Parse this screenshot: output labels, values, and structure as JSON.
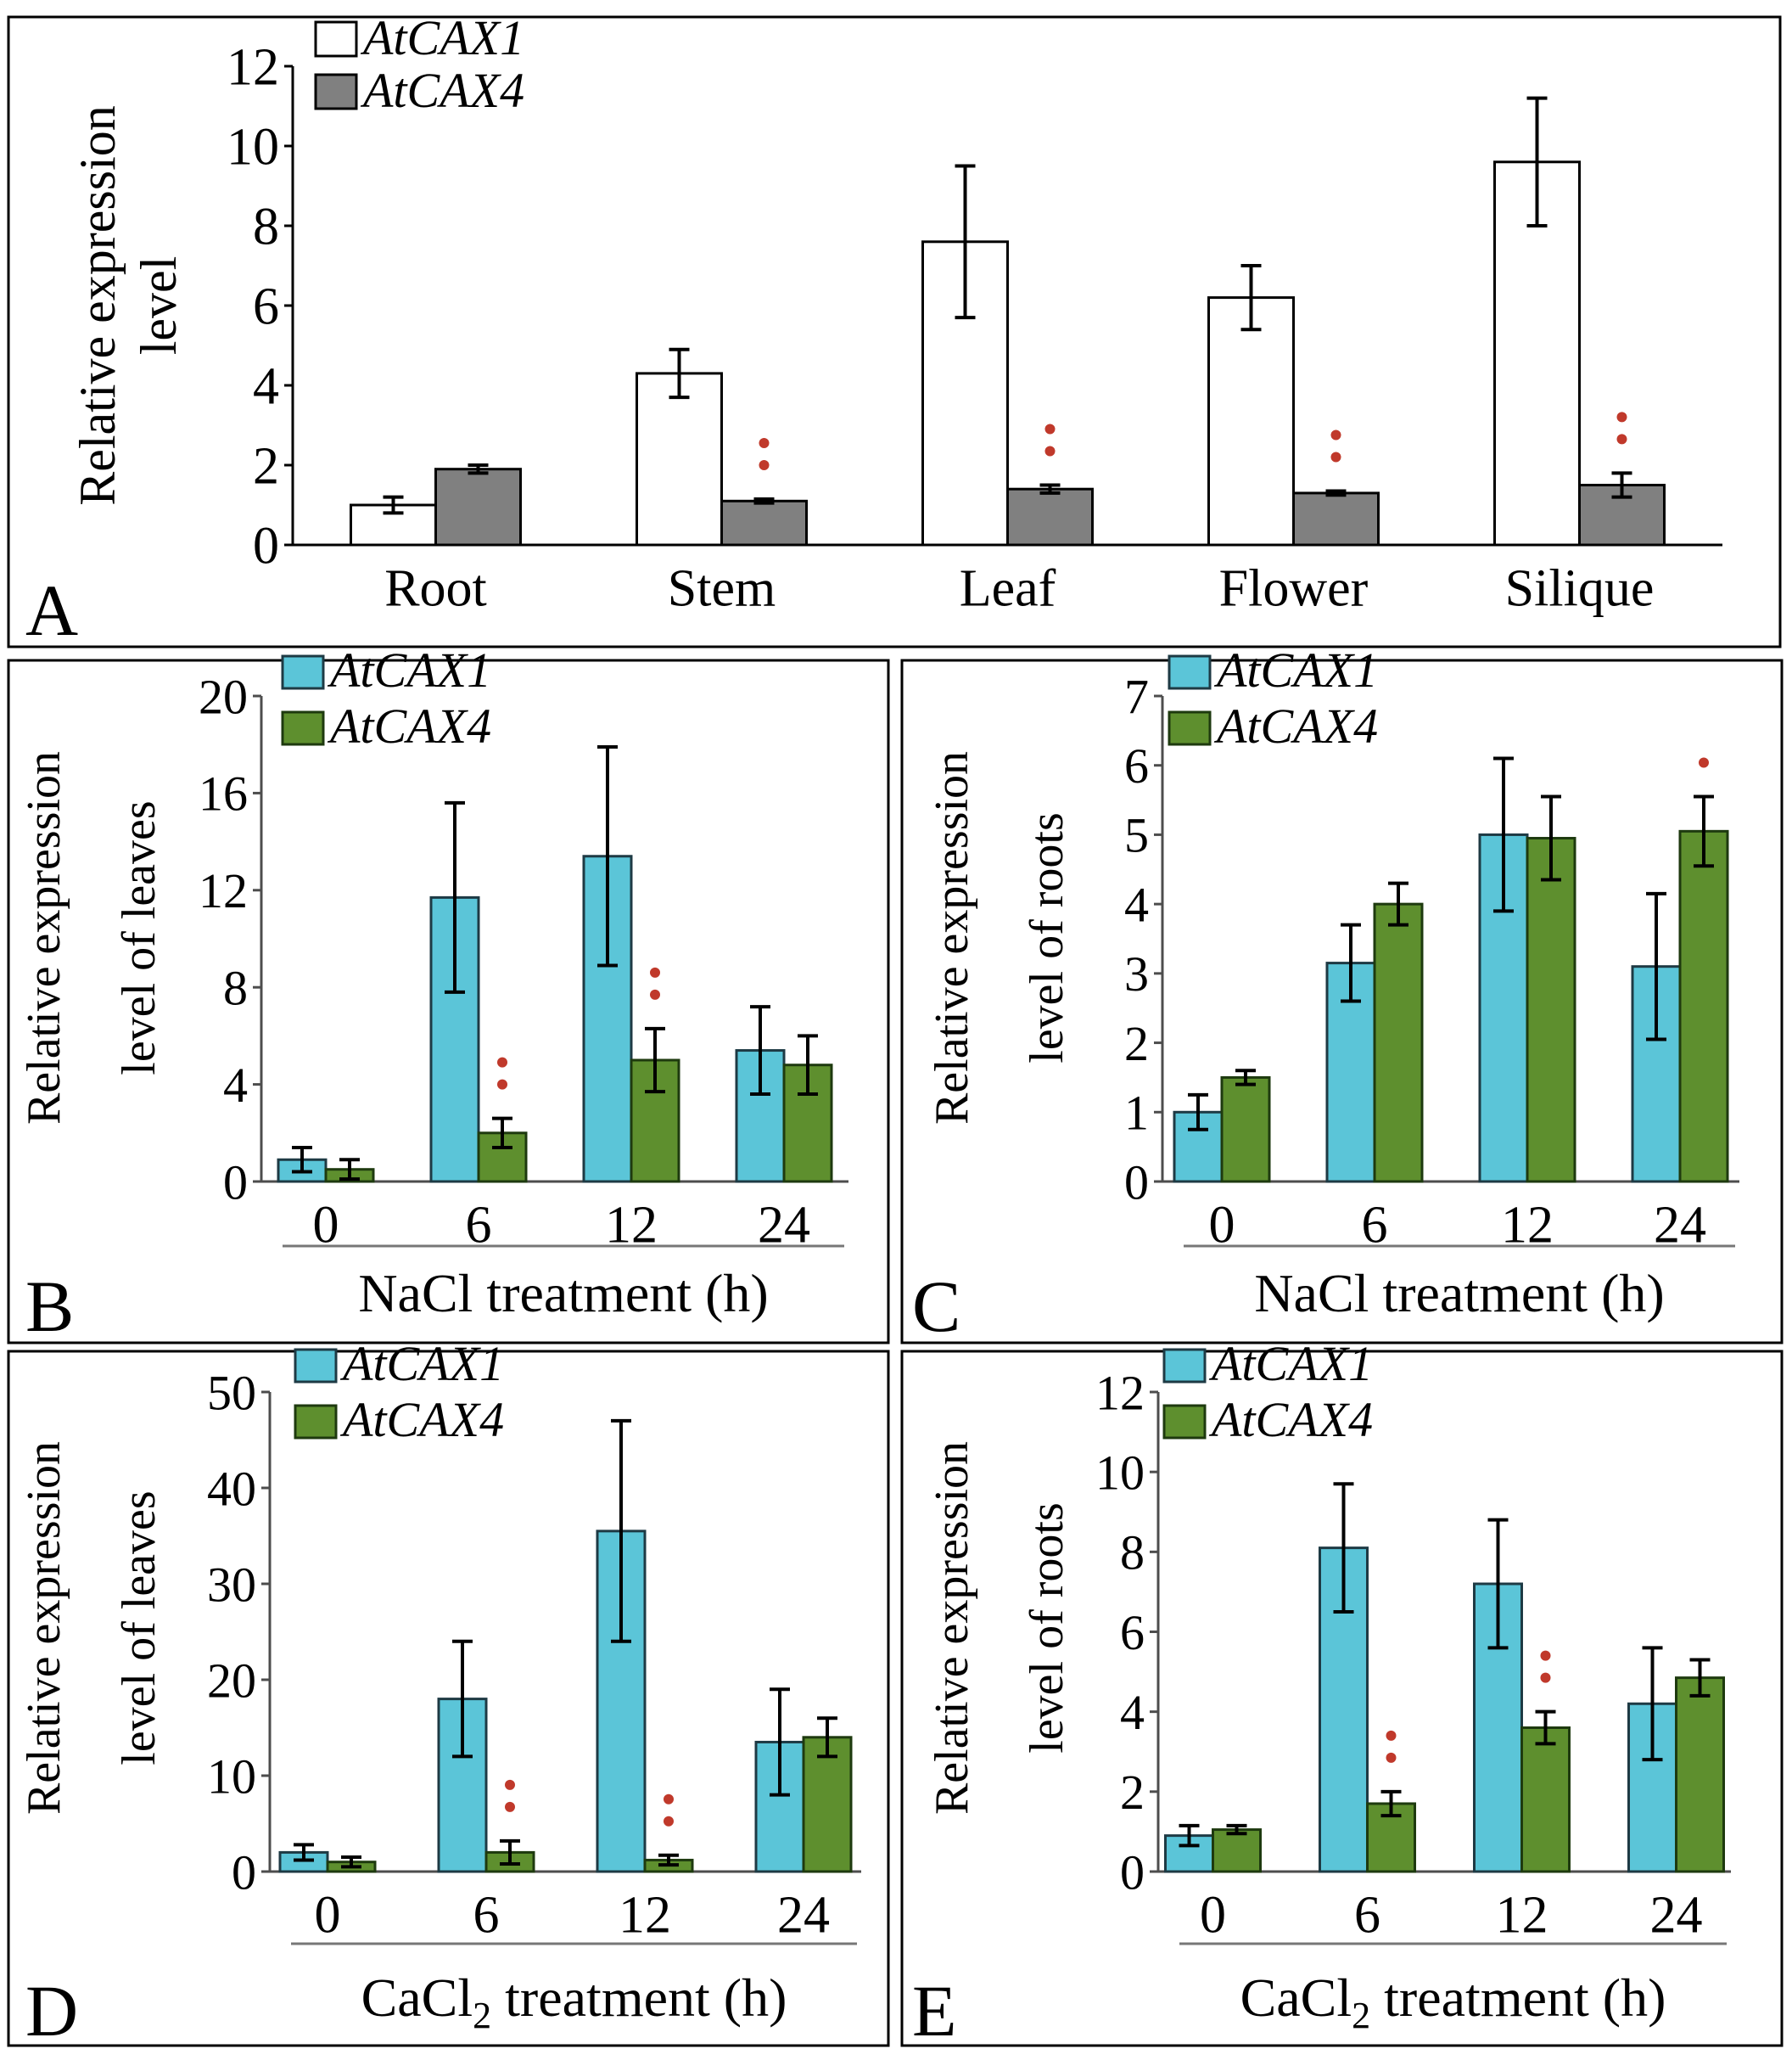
{
  "colors": {
    "cax1_A": "#ffffff",
    "cax4_A": "#808080",
    "cax1": "#5bc5d8",
    "cax4": "#5e8f2e",
    "star": "#c0392b"
  },
  "chart_data": [
    {
      "id": "A",
      "type": "bar",
      "panel_label": "A",
      "ylabel_lines": [
        "Relative expression",
        "level"
      ],
      "xlabel_pre": "",
      "xlabel_sub": "",
      "xlabel_post": "",
      "categories": [
        "Root",
        "Stem",
        "Leaf",
        "Flower",
        "Silique"
      ],
      "ylim": [
        0,
        12
      ],
      "yticks": [
        0,
        2,
        4,
        6,
        8,
        10,
        12
      ],
      "legend": [
        "AtCAX1",
        "AtCAX4"
      ],
      "series": [
        {
          "name": "AtCAX1",
          "values": [
            1.0,
            4.3,
            7.6,
            6.2,
            9.6
          ],
          "errors": [
            0.2,
            0.6,
            1.9,
            0.8,
            1.6
          ],
          "stars": [
            "",
            "",
            "",
            "",
            ""
          ]
        },
        {
          "name": "AtCAX4",
          "values": [
            1.9,
            1.1,
            1.4,
            1.3,
            1.5
          ],
          "errors": [
            0.1,
            0.05,
            0.1,
            0.05,
            0.3
          ],
          "stars": [
            "",
            "**",
            "**",
            "**",
            "**"
          ]
        }
      ]
    },
    {
      "id": "B",
      "type": "bar",
      "panel_label": "B",
      "ylabel_lines": [
        "Relative expression",
        "level of leaves"
      ],
      "xlabel_pre": "NaCl treatment (h)",
      "xlabel_sub": "",
      "xlabel_post": "",
      "categories": [
        "0",
        "6",
        "12",
        "24"
      ],
      "ylim": [
        0,
        20
      ],
      "yticks": [
        0,
        4,
        8,
        12,
        16,
        20
      ],
      "legend": [
        "AtCAX1",
        "AtCAX4"
      ],
      "series": [
        {
          "name": "AtCAX1",
          "values": [
            0.9,
            11.7,
            13.4,
            5.4
          ],
          "errors": [
            0.5,
            3.9,
            4.5,
            1.8
          ],
          "stars": [
            "",
            "",
            "",
            ""
          ]
        },
        {
          "name": "AtCAX4",
          "values": [
            0.5,
            2.0,
            5.0,
            4.8
          ],
          "errors": [
            0.4,
            0.6,
            1.3,
            1.2
          ],
          "stars": [
            "",
            "**",
            "**",
            ""
          ]
        }
      ]
    },
    {
      "id": "C",
      "type": "bar",
      "panel_label": "C",
      "ylabel_lines": [
        "Relative expression",
        "level of roots"
      ],
      "xlabel_pre": "NaCl treatment (h)",
      "xlabel_sub": "",
      "xlabel_post": "",
      "categories": [
        "0",
        "6",
        "12",
        "24"
      ],
      "ylim": [
        0,
        7
      ],
      "yticks": [
        0,
        1,
        2,
        3,
        4,
        5,
        6,
        7
      ],
      "legend": [
        "AtCAX1",
        "AtCAX4"
      ],
      "series": [
        {
          "name": "AtCAX1",
          "values": [
            1.0,
            3.15,
            5.0,
            3.1
          ],
          "errors": [
            0.25,
            0.55,
            1.1,
            1.05
          ],
          "stars": [
            "",
            "",
            "",
            ""
          ]
        },
        {
          "name": "AtCAX4",
          "values": [
            1.5,
            4.0,
            4.95,
            5.05
          ],
          "errors": [
            0.1,
            0.3,
            0.6,
            0.5
          ],
          "stars": [
            "",
            "",
            "",
            "*"
          ]
        }
      ]
    },
    {
      "id": "D",
      "type": "bar",
      "panel_label": "D",
      "ylabel_lines": [
        "Relative expression",
        "level of leaves"
      ],
      "xlabel_pre": "CaCl",
      "xlabel_sub": "2",
      "xlabel_post": " treatment (h)",
      "categories": [
        "0",
        "6",
        "12",
        "24"
      ],
      "ylim": [
        0,
        50
      ],
      "yticks": [
        0,
        10,
        20,
        30,
        40,
        50
      ],
      "legend": [
        "AtCAX1",
        "AtCAX4"
      ],
      "series": [
        {
          "name": "AtCAX1",
          "values": [
            2.0,
            18.0,
            35.5,
            13.5
          ],
          "errors": [
            0.8,
            6.0,
            11.5,
            5.5
          ],
          "stars": [
            "",
            "",
            "",
            ""
          ]
        },
        {
          "name": "AtCAX4",
          "values": [
            1.0,
            2.0,
            1.2,
            14.0
          ],
          "errors": [
            0.5,
            1.2,
            0.5,
            2.0
          ],
          "stars": [
            "",
            "**",
            "**",
            ""
          ]
        }
      ]
    },
    {
      "id": "E",
      "type": "bar",
      "panel_label": "E",
      "ylabel_lines": [
        "Relative expression",
        "level of roots"
      ],
      "xlabel_pre": "CaCl",
      "xlabel_sub": "2",
      "xlabel_post": " treatment (h)",
      "categories": [
        "0",
        "6",
        "12",
        "24"
      ],
      "ylim": [
        0,
        12
      ],
      "yticks": [
        0,
        2,
        4,
        6,
        8,
        10,
        12
      ],
      "legend": [
        "AtCAX1",
        "AtCAX4"
      ],
      "series": [
        {
          "name": "AtCAX1",
          "values": [
            0.9,
            8.1,
            7.2,
            4.2
          ],
          "errors": [
            0.25,
            1.6,
            1.6,
            1.4
          ],
          "stars": [
            "",
            "",
            "",
            ""
          ]
        },
        {
          "name": "AtCAX4",
          "values": [
            1.05,
            1.7,
            3.6,
            4.85
          ],
          "errors": [
            0.1,
            0.3,
            0.4,
            0.45
          ],
          "stars": [
            "",
            "**",
            "**",
            ""
          ]
        }
      ]
    }
  ]
}
